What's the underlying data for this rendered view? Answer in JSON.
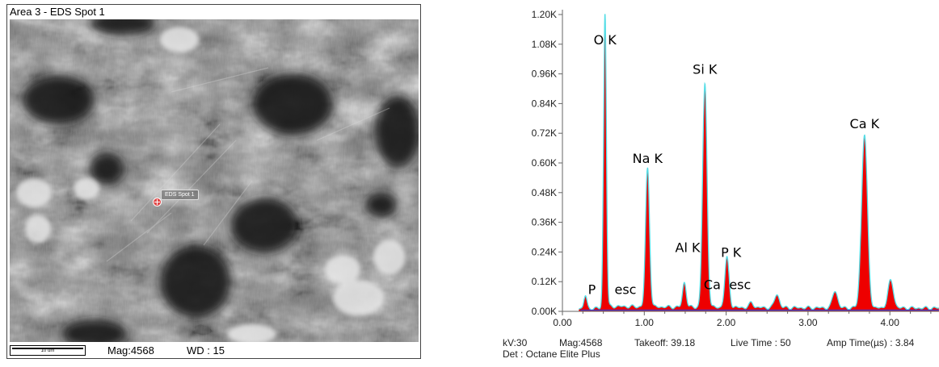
{
  "sem": {
    "title": "Area 3 - EDS Spot 1",
    "spot_label": "EDS Spot 1",
    "scale_label": "10 um",
    "mag": "Mag:4568",
    "wd": "WD : 15"
  },
  "chart_data": {
    "type": "area",
    "title": "",
    "xlabel": "",
    "ylabel": "",
    "xlim": [
      0.0,
      4.6
    ],
    "ylim": [
      0,
      1.2
    ],
    "x_ticks": [
      0.0,
      1.0,
      2.0,
      3.0,
      4.0
    ],
    "x_tick_labels": [
      "0.00",
      "1.00",
      "2.00",
      "3.00",
      "4.00"
    ],
    "y_ticks": [
      0,
      0.12,
      0.24,
      0.36,
      0.48,
      0.6,
      0.72,
      0.84,
      0.96,
      1.08,
      1.2
    ],
    "y_tick_labels": [
      "0.00K",
      "0.12K",
      "0.24K",
      "0.36K",
      "0.48K",
      "0.60K",
      "0.72K",
      "0.84K",
      "0.96K",
      "1.08K",
      "1.20K"
    ],
    "peaks": [
      {
        "x": 0.28,
        "y": 0.05,
        "w": 0.018
      },
      {
        "x": 0.52,
        "y": 1.2,
        "w": 0.017
      },
      {
        "x": 1.04,
        "y": 0.56,
        "w": 0.024
      },
      {
        "x": 1.49,
        "y": 0.1,
        "w": 0.022
      },
      {
        "x": 1.74,
        "y": 0.9,
        "w": 0.027
      },
      {
        "x": 2.01,
        "y": 0.2,
        "w": 0.026
      },
      {
        "x": 2.31,
        "y": 0.02,
        "w": 0.025
      },
      {
        "x": 2.62,
        "y": 0.055,
        "w": 0.028
      },
      {
        "x": 3.33,
        "y": 0.07,
        "w": 0.03
      },
      {
        "x": 3.69,
        "y": 0.7,
        "w": 0.036
      },
      {
        "x": 4.01,
        "y": 0.11,
        "w": 0.034
      }
    ],
    "background_level": 0.012,
    "labels": [
      {
        "text": "O  K",
        "x": 0.52,
        "y": 1.08
      },
      {
        "text": "Na K",
        "x": 1.04,
        "y": 0.6
      },
      {
        "text": "Si K",
        "x": 1.74,
        "y": 0.96
      },
      {
        "text": "Al K",
        "x": 1.53,
        "y": 0.24
      },
      {
        "text": "P  K",
        "x": 2.06,
        "y": 0.22
      },
      {
        "text": "Ca K",
        "x": 3.69,
        "y": 0.74
      },
      {
        "text": "P",
        "x": 0.36,
        "y": 0.07
      },
      {
        "text": "esc",
        "x": 0.77,
        "y": 0.07
      },
      {
        "text": "Ca",
        "x": 1.83,
        "y": 0.09
      },
      {
        "text": "esc",
        "x": 2.17,
        "y": 0.09
      }
    ],
    "colors": {
      "fill": "#ee0000",
      "outline": "#55dde6",
      "baseline": "#3a3ad0",
      "axis": "#666666"
    }
  },
  "eds_footer": {
    "kv": "kV:30",
    "mag": "Mag:4568",
    "takeoff": "Takeoff: 39.18",
    "live_time": "Live Time : 50",
    "amp_time": "Amp Time(µs) : 3.84",
    "detector": "Det : Octane Elite Plus"
  }
}
